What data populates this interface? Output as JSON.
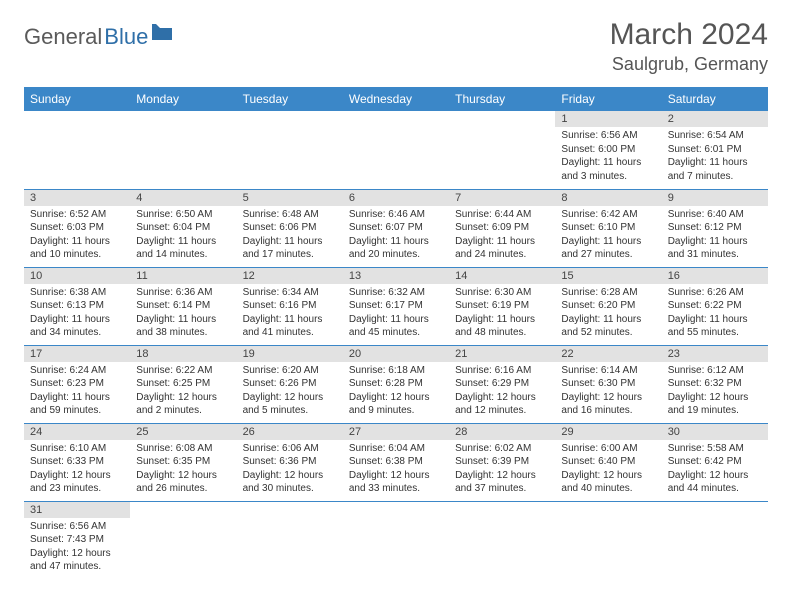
{
  "logo": {
    "general": "General",
    "blue": "Blue"
  },
  "title": "March 2024",
  "location": "Saulgrub, Germany",
  "colors": {
    "header_bg": "#3b87c8",
    "daynum_bg": "#e2e2e2",
    "divider": "#3b87c8",
    "text": "#333333",
    "title_text": "#555555",
    "logo_gray": "#5a5a5a",
    "logo_blue": "#2f6fa8"
  },
  "columns": [
    "Sunday",
    "Monday",
    "Tuesday",
    "Wednesday",
    "Thursday",
    "Friday",
    "Saturday"
  ],
  "weeks": [
    [
      {
        "day": "",
        "sunrise": "",
        "sunset": "",
        "daylight": ""
      },
      {
        "day": "",
        "sunrise": "",
        "sunset": "",
        "daylight": ""
      },
      {
        "day": "",
        "sunrise": "",
        "sunset": "",
        "daylight": ""
      },
      {
        "day": "",
        "sunrise": "",
        "sunset": "",
        "daylight": ""
      },
      {
        "day": "",
        "sunrise": "",
        "sunset": "",
        "daylight": ""
      },
      {
        "day": "1",
        "sunrise": "Sunrise: 6:56 AM",
        "sunset": "Sunset: 6:00 PM",
        "daylight": "Daylight: 11 hours and 3 minutes."
      },
      {
        "day": "2",
        "sunrise": "Sunrise: 6:54 AM",
        "sunset": "Sunset: 6:01 PM",
        "daylight": "Daylight: 11 hours and 7 minutes."
      }
    ],
    [
      {
        "day": "3",
        "sunrise": "Sunrise: 6:52 AM",
        "sunset": "Sunset: 6:03 PM",
        "daylight": "Daylight: 11 hours and 10 minutes."
      },
      {
        "day": "4",
        "sunrise": "Sunrise: 6:50 AM",
        "sunset": "Sunset: 6:04 PM",
        "daylight": "Daylight: 11 hours and 14 minutes."
      },
      {
        "day": "5",
        "sunrise": "Sunrise: 6:48 AM",
        "sunset": "Sunset: 6:06 PM",
        "daylight": "Daylight: 11 hours and 17 minutes."
      },
      {
        "day": "6",
        "sunrise": "Sunrise: 6:46 AM",
        "sunset": "Sunset: 6:07 PM",
        "daylight": "Daylight: 11 hours and 20 minutes."
      },
      {
        "day": "7",
        "sunrise": "Sunrise: 6:44 AM",
        "sunset": "Sunset: 6:09 PM",
        "daylight": "Daylight: 11 hours and 24 minutes."
      },
      {
        "day": "8",
        "sunrise": "Sunrise: 6:42 AM",
        "sunset": "Sunset: 6:10 PM",
        "daylight": "Daylight: 11 hours and 27 minutes."
      },
      {
        "day": "9",
        "sunrise": "Sunrise: 6:40 AM",
        "sunset": "Sunset: 6:12 PM",
        "daylight": "Daylight: 11 hours and 31 minutes."
      }
    ],
    [
      {
        "day": "10",
        "sunrise": "Sunrise: 6:38 AM",
        "sunset": "Sunset: 6:13 PM",
        "daylight": "Daylight: 11 hours and 34 minutes."
      },
      {
        "day": "11",
        "sunrise": "Sunrise: 6:36 AM",
        "sunset": "Sunset: 6:14 PM",
        "daylight": "Daylight: 11 hours and 38 minutes."
      },
      {
        "day": "12",
        "sunrise": "Sunrise: 6:34 AM",
        "sunset": "Sunset: 6:16 PM",
        "daylight": "Daylight: 11 hours and 41 minutes."
      },
      {
        "day": "13",
        "sunrise": "Sunrise: 6:32 AM",
        "sunset": "Sunset: 6:17 PM",
        "daylight": "Daylight: 11 hours and 45 minutes."
      },
      {
        "day": "14",
        "sunrise": "Sunrise: 6:30 AM",
        "sunset": "Sunset: 6:19 PM",
        "daylight": "Daylight: 11 hours and 48 minutes."
      },
      {
        "day": "15",
        "sunrise": "Sunrise: 6:28 AM",
        "sunset": "Sunset: 6:20 PM",
        "daylight": "Daylight: 11 hours and 52 minutes."
      },
      {
        "day": "16",
        "sunrise": "Sunrise: 6:26 AM",
        "sunset": "Sunset: 6:22 PM",
        "daylight": "Daylight: 11 hours and 55 minutes."
      }
    ],
    [
      {
        "day": "17",
        "sunrise": "Sunrise: 6:24 AM",
        "sunset": "Sunset: 6:23 PM",
        "daylight": "Daylight: 11 hours and 59 minutes."
      },
      {
        "day": "18",
        "sunrise": "Sunrise: 6:22 AM",
        "sunset": "Sunset: 6:25 PM",
        "daylight": "Daylight: 12 hours and 2 minutes."
      },
      {
        "day": "19",
        "sunrise": "Sunrise: 6:20 AM",
        "sunset": "Sunset: 6:26 PM",
        "daylight": "Daylight: 12 hours and 5 minutes."
      },
      {
        "day": "20",
        "sunrise": "Sunrise: 6:18 AM",
        "sunset": "Sunset: 6:28 PM",
        "daylight": "Daylight: 12 hours and 9 minutes."
      },
      {
        "day": "21",
        "sunrise": "Sunrise: 6:16 AM",
        "sunset": "Sunset: 6:29 PM",
        "daylight": "Daylight: 12 hours and 12 minutes."
      },
      {
        "day": "22",
        "sunrise": "Sunrise: 6:14 AM",
        "sunset": "Sunset: 6:30 PM",
        "daylight": "Daylight: 12 hours and 16 minutes."
      },
      {
        "day": "23",
        "sunrise": "Sunrise: 6:12 AM",
        "sunset": "Sunset: 6:32 PM",
        "daylight": "Daylight: 12 hours and 19 minutes."
      }
    ],
    [
      {
        "day": "24",
        "sunrise": "Sunrise: 6:10 AM",
        "sunset": "Sunset: 6:33 PM",
        "daylight": "Daylight: 12 hours and 23 minutes."
      },
      {
        "day": "25",
        "sunrise": "Sunrise: 6:08 AM",
        "sunset": "Sunset: 6:35 PM",
        "daylight": "Daylight: 12 hours and 26 minutes."
      },
      {
        "day": "26",
        "sunrise": "Sunrise: 6:06 AM",
        "sunset": "Sunset: 6:36 PM",
        "daylight": "Daylight: 12 hours and 30 minutes."
      },
      {
        "day": "27",
        "sunrise": "Sunrise: 6:04 AM",
        "sunset": "Sunset: 6:38 PM",
        "daylight": "Daylight: 12 hours and 33 minutes."
      },
      {
        "day": "28",
        "sunrise": "Sunrise: 6:02 AM",
        "sunset": "Sunset: 6:39 PM",
        "daylight": "Daylight: 12 hours and 37 minutes."
      },
      {
        "day": "29",
        "sunrise": "Sunrise: 6:00 AM",
        "sunset": "Sunset: 6:40 PM",
        "daylight": "Daylight: 12 hours and 40 minutes."
      },
      {
        "day": "30",
        "sunrise": "Sunrise: 5:58 AM",
        "sunset": "Sunset: 6:42 PM",
        "daylight": "Daylight: 12 hours and 44 minutes."
      }
    ],
    [
      {
        "day": "31",
        "sunrise": "Sunrise: 6:56 AM",
        "sunset": "Sunset: 7:43 PM",
        "daylight": "Daylight: 12 hours and 47 minutes."
      },
      {
        "day": "",
        "sunrise": "",
        "sunset": "",
        "daylight": ""
      },
      {
        "day": "",
        "sunrise": "",
        "sunset": "",
        "daylight": ""
      },
      {
        "day": "",
        "sunrise": "",
        "sunset": "",
        "daylight": ""
      },
      {
        "day": "",
        "sunrise": "",
        "sunset": "",
        "daylight": ""
      },
      {
        "day": "",
        "sunrise": "",
        "sunset": "",
        "daylight": ""
      },
      {
        "day": "",
        "sunrise": "",
        "sunset": "",
        "daylight": ""
      }
    ]
  ]
}
